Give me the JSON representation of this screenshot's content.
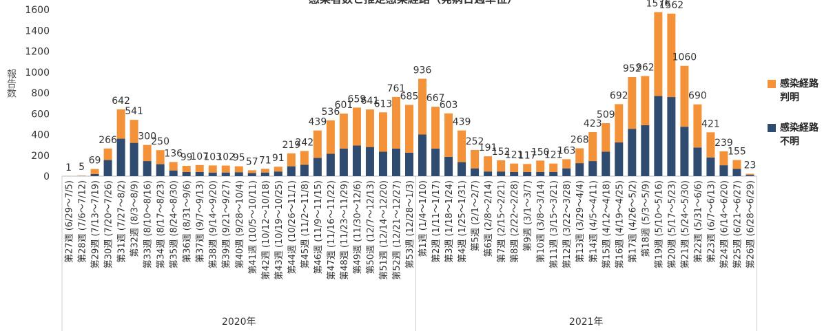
{
  "chart_data": {
    "type": "stacked_bar",
    "title": "感染者数と推定感染経路（発病日週単位）",
    "y_label": "報告数",
    "categories": [
      "第27週 (6/29～7/5)",
      "第28週 (7/6～7/12)",
      "第29週 (7/13～7/19)",
      "第30週 (7/20～7/26)",
      "第31週 (7/27～8/2)",
      "第32週 (8/3～8/9)",
      "第33週 (8/10～8/16)",
      "第34週 (8/17～8/23)",
      "第35週 (8/24～8/30)",
      "第36週 (8/31～9/6)",
      "第37週 (9/7～9/13)",
      "第38週 (9/14～9/20)",
      "第39週 (9/21～9/27)",
      "第40週 (9/28～10/4)",
      "第41週 (10/5～10/11)",
      "第42週 (10/12～10/18)",
      "第43週 (10/19～10/25)",
      "第44週 (10/26～11/1)",
      "第45週 (11/2～11/8)",
      "第46週 (11/9～11/15)",
      "第47週 (11/16～11/22)",
      "第48週 (11/23～11/29)",
      "第49週 (11/30～12/6)",
      "第50週 (12/7～12/13)",
      "第51週 (12/14～12/20)",
      "第52週 (12/21～12/27)",
      "第53週 (12/28～1/3)",
      "第1週 (1/4～1/10)",
      "第2週 (1/11～1/17)",
      "第3週 (1/18～1/24)",
      "第4週 (1/25～1/31)",
      "第5週 (2/1～2/7)",
      "第6週 (2/8～2/14)",
      "第7週 (2/15～2/21)",
      "第8週 (2/22～2/28)",
      "第9週 (3/1～3/7)",
      "第10週 (3/8～3/14)",
      "第11週 (3/15～3/21)",
      "第12週 (3/22～3/28)",
      "第13週 (3/29～4/4)",
      "第14週 (4/5～4/11)",
      "第15週 (4/12～4/18)",
      "第16週 (4/19～4/25)",
      "第17週 (4/26～5/2)",
      "第18週 (5/3～5/9)",
      "第19週 (5/10～5/16)",
      "第20週 (5/17～5/23)",
      "第21週 (5/24～5/30)",
      "第22週 (5/31～6/6)",
      "第23週 (6/7～6/13)",
      "第24週 (6/14～6/20)",
      "第25週 (6/21～6/27)",
      "第26週 (6/28～6/29)"
    ],
    "category_groups": [
      "2020年",
      "2021年"
    ],
    "series": [
      {
        "name": "感染経路不明",
        "color": "#2f4b70",
        "values": [
          0,
          2,
          20,
          155,
          360,
          320,
          145,
          115,
          55,
          40,
          40,
          35,
          35,
          38,
          30,
          35,
          45,
          95,
          110,
          175,
          215,
          265,
          295,
          280,
          235,
          265,
          225,
          400,
          265,
          185,
          135,
          75,
          45,
          45,
          40,
          40,
          40,
          40,
          75,
          125,
          145,
          235,
          325,
          455,
          490,
          770,
          760,
          475,
          275,
          180,
          105,
          70,
          12
        ]
      },
      {
        "name": "感染経路判明",
        "color": "#f4923a",
        "values": [
          1,
          3,
          49,
          111,
          282,
          221,
          155,
          135,
          81,
          59,
          67,
          68,
          67,
          57,
          27,
          36,
          46,
          124,
          132,
          264,
          321,
          336,
          364,
          361,
          378,
          496,
          460,
          536,
          402,
          418,
          304,
          177,
          146,
          107,
          81,
          77,
          110,
          81,
          88,
          143,
          278,
          274,
          367,
          497,
          472,
          806,
          802,
          585,
          415,
          241,
          134,
          85,
          11
        ]
      }
    ],
    "totals": [
      1,
      5,
      69,
      266,
      642,
      541,
      300,
      250,
      136,
      99,
      107,
      103,
      102,
      95,
      57,
      71,
      91,
      219,
      242,
      439,
      536,
      601,
      659,
      641,
      613,
      761,
      685,
      936,
      667,
      603,
      439,
      252,
      191,
      152,
      121,
      117,
      150,
      121,
      163,
      268,
      423,
      509,
      692,
      952,
      962,
      1576,
      1562,
      1060,
      690,
      421,
      239,
      155,
      23
    ],
    "ylim": [
      0,
      1600
    ],
    "yticks": [
      0,
      200,
      400,
      600,
      800,
      1000,
      1200,
      1400,
      1600
    ],
    "grid": false,
    "legend": "right"
  }
}
